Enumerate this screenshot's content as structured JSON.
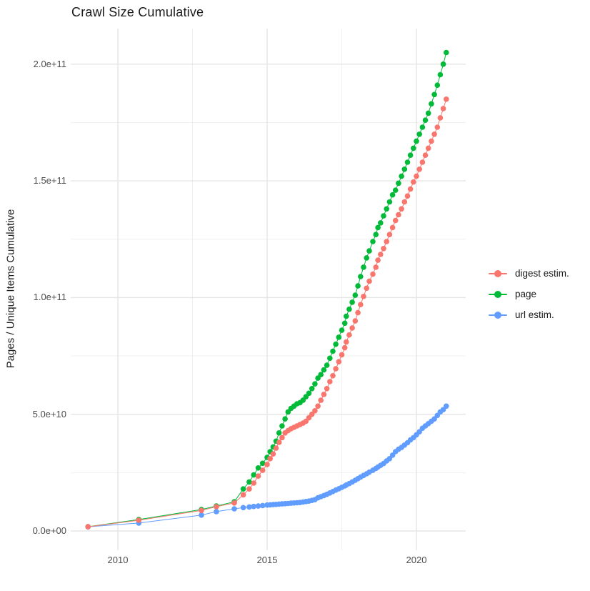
{
  "chart_data": {
    "type": "line",
    "title": "Crawl Size Cumulative",
    "xlabel": "",
    "ylabel": "Pages / Unique Items Cumulative",
    "legend_position": "right",
    "grid": "on",
    "values_unit": "1e9 (billions of pages / items)",
    "xlim": [
      2008.42,
      2021.65
    ],
    "ylim_1e9": [
      -8.3,
      215.2
    ],
    "x_ticks": [
      {
        "label": "2010",
        "year": 2010
      },
      {
        "label": "2015",
        "year": 2015
      },
      {
        "label": "2020",
        "year": 2020
      }
    ],
    "y_ticks": [
      {
        "label": "0.0e+00",
        "value_1e9": 0
      },
      {
        "label": "5.0e+10",
        "value_1e9": 50
      },
      {
        "label": "1.0e+11",
        "value_1e9": 100
      },
      {
        "label": "1.5e+11",
        "value_1e9": 150
      },
      {
        "label": "2.0e+11",
        "value_1e9": 200
      }
    ],
    "x_minor": [
      2012.5,
      2017.5
    ],
    "y_minor_1e9": [
      25,
      75,
      125,
      175
    ],
    "x_years": [
      2009.0,
      2010.7,
      2012.8,
      2013.3,
      2013.9,
      2014.2,
      2014.4,
      2014.55,
      2014.7,
      2014.85,
      2015.0,
      2015.1,
      2015.2,
      2015.3,
      2015.4,
      2015.5,
      2015.6,
      2015.7,
      2015.8,
      2015.9,
      2016.0,
      2016.1,
      2016.2,
      2016.3,
      2016.4,
      2016.5,
      2016.6,
      2016.7,
      2016.8,
      2016.9,
      2017.0,
      2017.1,
      2017.2,
      2017.3,
      2017.4,
      2017.5,
      2017.6,
      2017.65,
      2017.75,
      2017.85,
      2017.95,
      2018.04,
      2018.13,
      2018.23,
      2018.33,
      2018.42,
      2018.54,
      2018.64,
      2018.71,
      2018.8,
      2018.9,
      2019.0,
      2019.1,
      2019.2,
      2019.3,
      2019.4,
      2019.5,
      2019.6,
      2019.7,
      2019.8,
      2019.9,
      2020.0,
      2020.1,
      2020.2,
      2020.3,
      2020.4,
      2020.5,
      2020.6,
      2020.7,
      2020.8,
      2020.9,
      2021.0
    ],
    "series": [
      {
        "name": "digest estim.",
        "color": "#F8766D",
        "values_1e9": [
          1.8,
          4.6,
          8.8,
          10.4,
          12.0,
          15.5,
          18,
          20.5,
          23.5,
          26,
          28.5,
          31,
          33,
          35.5,
          38,
          40,
          42,
          43,
          43.8,
          44.4,
          45,
          45.6,
          46.2,
          47,
          48.5,
          50,
          51.5,
          53.5,
          56,
          58.5,
          61,
          64,
          66.5,
          69.5,
          72.5,
          75.5,
          78.5,
          81,
          84,
          87,
          90,
          93.5,
          97,
          100.5,
          104,
          107,
          110,
          113,
          116,
          118.5,
          121,
          124,
          127,
          130,
          133,
          135.5,
          138,
          141,
          143.5,
          146.5,
          149.5,
          152,
          155,
          158,
          161,
          164,
          167,
          170,
          173,
          177,
          181,
          185
        ]
      },
      {
        "name": "page",
        "color": "#00BA38",
        "values_1e9": [
          1.8,
          4.9,
          9.2,
          10.7,
          12.5,
          18,
          21,
          24,
          27,
          29,
          31.5,
          34,
          36,
          38.5,
          42,
          45,
          48,
          51,
          52.5,
          53.5,
          54.5,
          55,
          56,
          57.5,
          59,
          61,
          63,
          65.5,
          67,
          69,
          71,
          74,
          77,
          80,
          83,
          86,
          89,
          92,
          95,
          98,
          101,
          105,
          109,
          113,
          117,
          120,
          124,
          127,
          130,
          132,
          135,
          138,
          141,
          144,
          146,
          149,
          152,
          155,
          158,
          161,
          164,
          167,
          170,
          173,
          176,
          179,
          183,
          187,
          191,
          195.5,
          200,
          205
        ]
      },
      {
        "name": "url estim.",
        "color": "#619CFF",
        "values_1e9": [
          1.8,
          3.4,
          6.8,
          8.3,
          9.5,
          10.0,
          10.3,
          10.5,
          10.7,
          10.9,
          11.1,
          11.2,
          11.3,
          11.4,
          11.5,
          11.6,
          11.7,
          11.8,
          11.9,
          12.0,
          12.1,
          12.2,
          12.4,
          12.6,
          12.8,
          13.1,
          13.4,
          14.2,
          14.7,
          15.2,
          15.7,
          16.3,
          16.9,
          17.5,
          18.1,
          18.7,
          19.3,
          19.7,
          20.3,
          21.0,
          21.7,
          22.4,
          23.1,
          23.8,
          24.5,
          25.2,
          26.0,
          26.8,
          27.4,
          28.1,
          28.9,
          30.0,
          31.0,
          32.5,
          34.0,
          35.0,
          35.8,
          36.8,
          37.8,
          39.0,
          40.0,
          41.2,
          42.5,
          44.0,
          45.0,
          46.0,
          47.0,
          48.0,
          49.5,
          51.0,
          52.0,
          53.5
        ]
      }
    ],
    "colors": {
      "background": "#ffffff",
      "grid_major": "#e5e5e5",
      "grid_minor": "#efefef",
      "axis_text": "#4d4d4d",
      "title_text": "#1a1a1a"
    }
  }
}
